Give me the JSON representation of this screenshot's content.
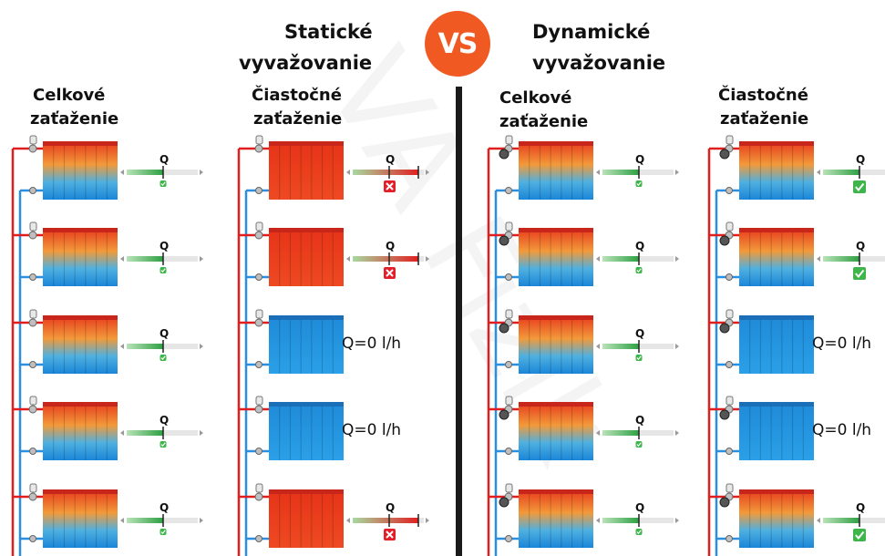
{
  "header": {
    "static_title_1": "Statické",
    "static_title_2": "vyvažovanie",
    "vs": "VS",
    "dynamic_title_1": "Dynamické",
    "dynamic_title_2": "vyvažovanie"
  },
  "columns": [
    {
      "label_1": "Celkové",
      "label_2": "zaťaženie",
      "rows": [
        {
          "state": "normal",
          "status": "ok"
        },
        {
          "state": "normal",
          "status": "ok"
        },
        {
          "state": "normal",
          "status": "ok"
        },
        {
          "state": "normal",
          "status": "ok"
        },
        {
          "state": "normal",
          "status": "ok"
        }
      ]
    },
    {
      "label_1": "Čiastočné",
      "label_2": "zaťaženie",
      "rows": [
        {
          "state": "hot",
          "status": "fail"
        },
        {
          "state": "hot",
          "status": "fail"
        },
        {
          "state": "off",
          "status": "none",
          "flow": "Q=0 l/h"
        },
        {
          "state": "off",
          "status": "none",
          "flow": "Q=0 l/h"
        },
        {
          "state": "hot",
          "status": "fail"
        }
      ]
    },
    {
      "label_1": "Celkové",
      "label_2": "zaťaženie",
      "rows": [
        {
          "state": "normal",
          "status": "ok"
        },
        {
          "state": "normal",
          "status": "ok"
        },
        {
          "state": "normal",
          "status": "ok"
        },
        {
          "state": "normal",
          "status": "ok"
        },
        {
          "state": "normal",
          "status": "ok"
        }
      ]
    },
    {
      "label_1": "Čiastočné",
      "label_2": "zaťaženie",
      "rows": [
        {
          "state": "normal",
          "status": "ok-big"
        },
        {
          "state": "normal",
          "status": "ok-big"
        },
        {
          "state": "off",
          "status": "none",
          "flow": "Q=0 l/h"
        },
        {
          "state": "off",
          "status": "none",
          "flow": "Q=0 l/h"
        },
        {
          "state": "normal",
          "status": "ok-big"
        }
      ]
    }
  ],
  "gauge_label": "Q",
  "colors": {
    "supply": "#e01e1e",
    "return": "#2a8fe0",
    "vs": "#f05a22",
    "ok": "#3db54a",
    "fail": "#e3202a"
  }
}
